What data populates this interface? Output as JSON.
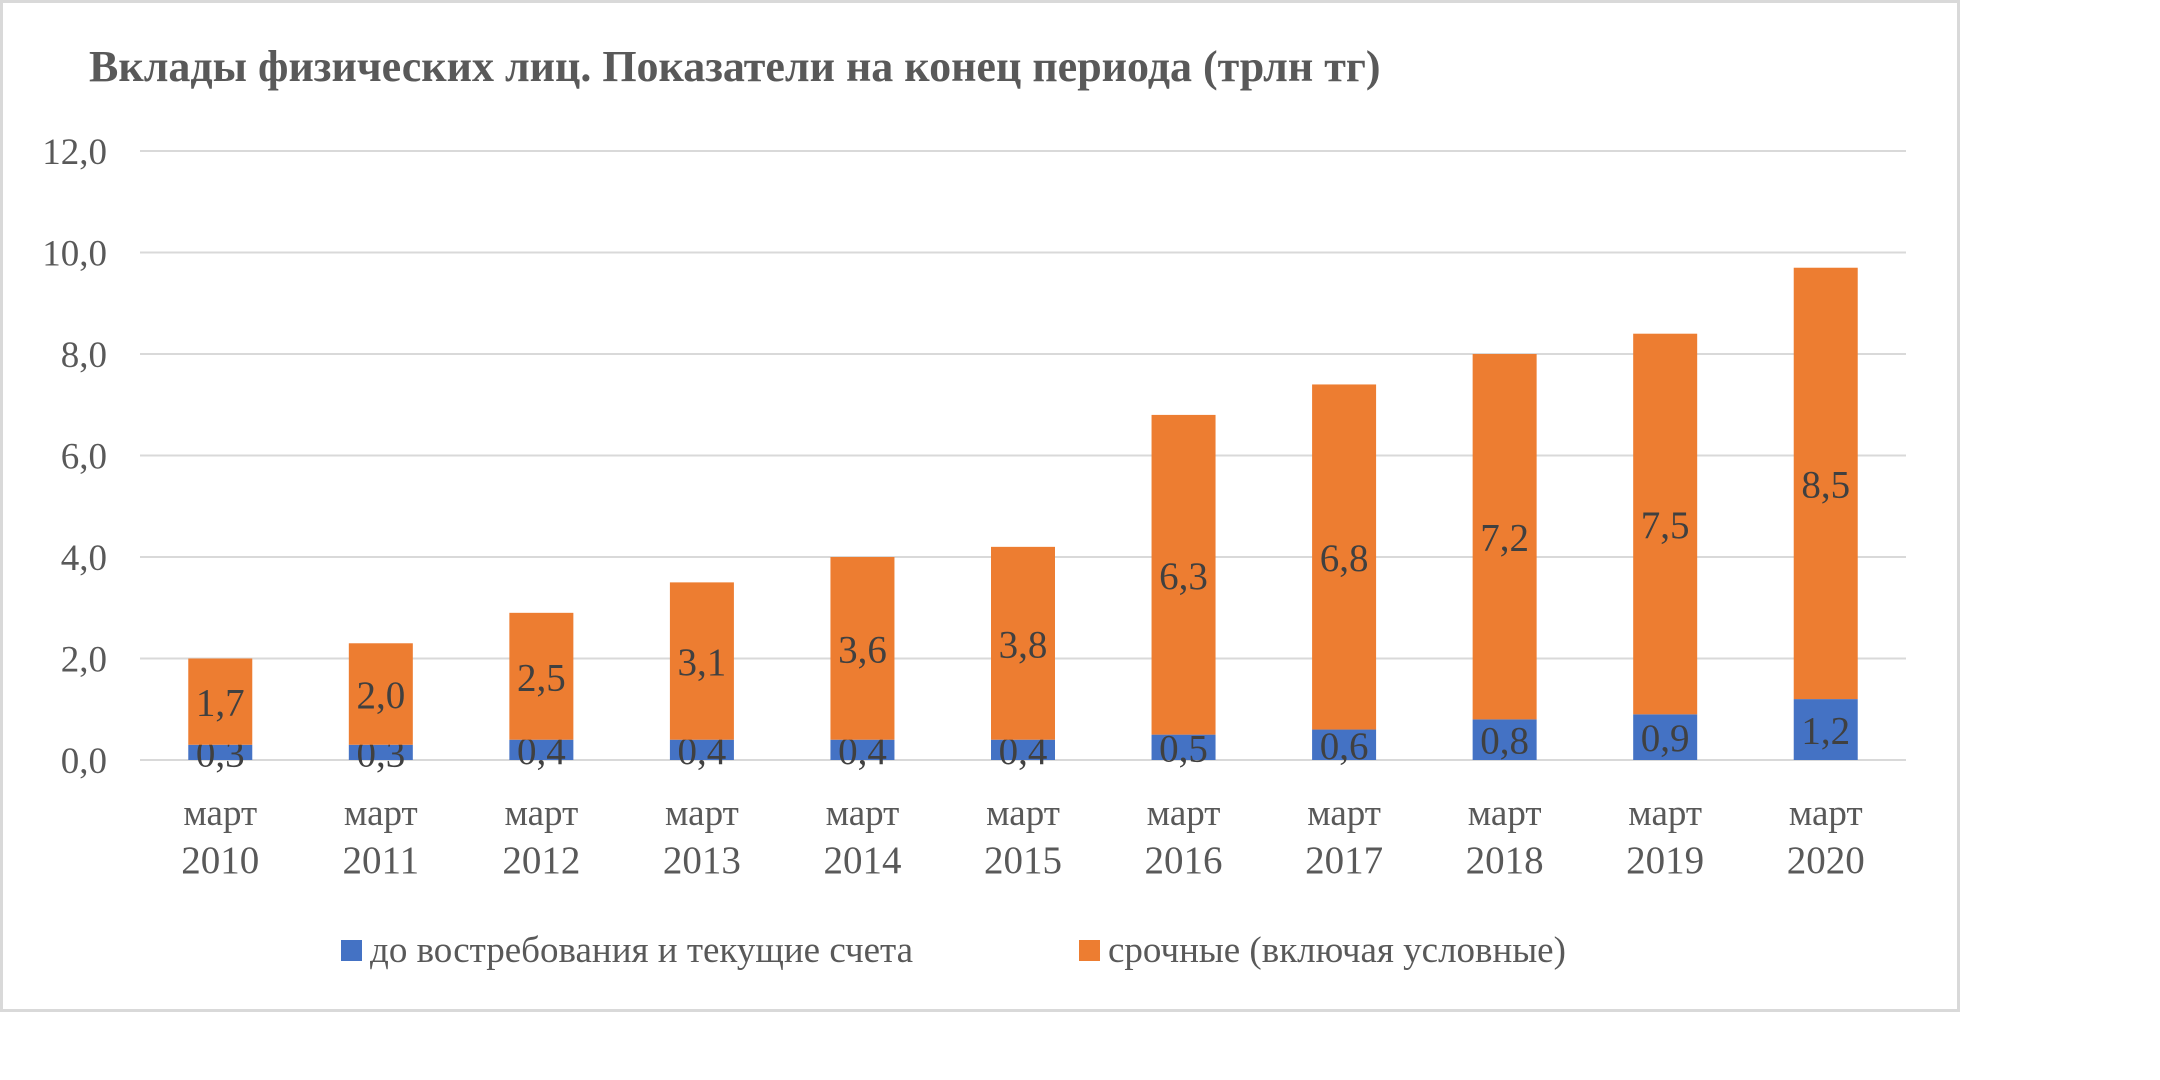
{
  "chart_data": {
    "type": "bar",
    "stacked": true,
    "title": "Вклады физических лиц. Показатели на конец периода (трлн тг)",
    "categories": [
      [
        "март",
        "2010"
      ],
      [
        "март",
        "2011"
      ],
      [
        "март",
        "2012"
      ],
      [
        "март",
        "2013"
      ],
      [
        "март",
        "2014"
      ],
      [
        "март",
        "2015"
      ],
      [
        "март",
        "2016"
      ],
      [
        "март",
        "2017"
      ],
      [
        "март",
        "2018"
      ],
      [
        "март",
        "2019"
      ],
      [
        "март",
        "2020"
      ]
    ],
    "series": [
      {
        "name": "до востребования и текущие счета",
        "color": "#4472c4",
        "values": [
          0.3,
          0.3,
          0.4,
          0.4,
          0.4,
          0.4,
          0.5,
          0.6,
          0.8,
          0.9,
          1.2
        ],
        "labels": [
          "0,3",
          "0,3",
          "0,4",
          "0,4",
          "0,4",
          "0,4",
          "0,5",
          "0,6",
          "0,8",
          "0,9",
          "1,2"
        ]
      },
      {
        "name": "срочные (включая условные)",
        "color": "#ed7d31",
        "values": [
          1.7,
          2.0,
          2.5,
          3.1,
          3.6,
          3.8,
          6.3,
          6.8,
          7.2,
          7.5,
          8.5
        ],
        "labels": [
          "1,7",
          "2,0",
          "2,5",
          "3,1",
          "3,6",
          "3,8",
          "6,3",
          "6,8",
          "7,2",
          "7,5",
          "8,5"
        ]
      }
    ],
    "ylim": [
      0,
      12
    ],
    "yticks": [
      0,
      2,
      4,
      6,
      8,
      10,
      12
    ],
    "ytick_labels": [
      "0,0",
      "2,0",
      "4,0",
      "6,0",
      "8,0",
      "10,0",
      "12,0"
    ],
    "grid": true,
    "legend_position": "bottom"
  }
}
